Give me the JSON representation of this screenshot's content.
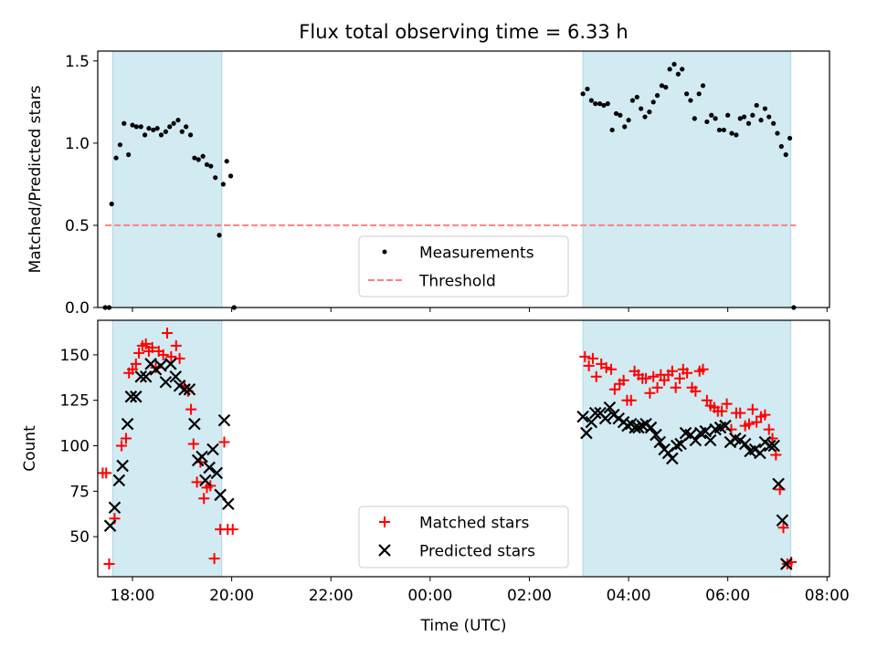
{
  "chart_data": [
    {
      "type": "scatter",
      "title": "Flux total observing time = 6.33 h",
      "xlabel": "",
      "ylabel": "Matched/Predicted stars",
      "xlim": [
        -6.7,
        8.05
      ],
      "ylim": [
        0,
        1.56
      ],
      "yticks": [
        0,
        0.5,
        1,
        1.5
      ],
      "ytick_labels": [
        "0.0",
        "0.5",
        "1.0",
        "1.5"
      ],
      "xticks": [
        -6,
        -4,
        -2,
        0,
        2,
        4,
        6,
        8
      ],
      "shaded_intervals": [
        [
          -6.4,
          -4.2
        ],
        [
          3.08,
          7.27
        ]
      ],
      "shade_color": "#add8e6",
      "legend_position": "lower center",
      "legend": [
        "Measurements",
        "Threshold"
      ],
      "threshold": {
        "name": "Threshold",
        "value": 0.5,
        "x": [
          -6.55,
          7.37
        ],
        "color": "#ff7f7f",
        "style": "dashed"
      },
      "series": [
        {
          "name": "Measurements",
          "color": "#000000",
          "marker": "dot",
          "points": [
            [
              -6.55,
              0.0
            ],
            [
              -6.47,
              0.0
            ],
            [
              -6.42,
              0.63
            ],
            [
              -6.33,
              0.91
            ],
            [
              -6.25,
              0.99
            ],
            [
              -6.17,
              1.12
            ],
            [
              -6.08,
              0.93
            ],
            [
              -6.0,
              1.11
            ],
            [
              -5.92,
              1.1
            ],
            [
              -5.83,
              1.1
            ],
            [
              -5.75,
              1.05
            ],
            [
              -5.67,
              1.09
            ],
            [
              -5.58,
              1.08
            ],
            [
              -5.5,
              1.09
            ],
            [
              -5.42,
              1.05
            ],
            [
              -5.33,
              1.07
            ],
            [
              -5.25,
              1.1
            ],
            [
              -5.17,
              1.12
            ],
            [
              -5.08,
              1.14
            ],
            [
              -5.0,
              1.07
            ],
            [
              -4.92,
              1.1
            ],
            [
              -4.83,
              1.05
            ],
            [
              -4.75,
              0.91
            ],
            [
              -4.67,
              0.9
            ],
            [
              -4.58,
              0.92
            ],
            [
              -4.5,
              0.87
            ],
            [
              -4.42,
              0.86
            ],
            [
              -4.33,
              0.79
            ],
            [
              -4.25,
              0.44
            ],
            [
              -4.17,
              0.75
            ],
            [
              -4.1,
              0.89
            ],
            [
              -4.02,
              0.8
            ],
            [
              -3.95,
              0.0
            ],
            [
              3.08,
              1.3
            ],
            [
              3.17,
              1.33
            ],
            [
              3.25,
              1.26
            ],
            [
              3.33,
              1.24
            ],
            [
              3.42,
              1.24
            ],
            [
              3.5,
              1.23
            ],
            [
              3.58,
              1.24
            ],
            [
              3.67,
              1.08
            ],
            [
              3.75,
              1.18
            ],
            [
              3.83,
              1.17
            ],
            [
              3.92,
              1.1
            ],
            [
              4.0,
              1.14
            ],
            [
              4.08,
              1.26
            ],
            [
              4.17,
              1.28
            ],
            [
              4.25,
              1.21
            ],
            [
              4.33,
              1.16
            ],
            [
              4.42,
              1.19
            ],
            [
              4.5,
              1.25
            ],
            [
              4.58,
              1.29
            ],
            [
              4.67,
              1.35
            ],
            [
              4.75,
              1.34
            ],
            [
              4.83,
              1.45
            ],
            [
              4.92,
              1.48
            ],
            [
              5.0,
              1.42
            ],
            [
              5.08,
              1.45
            ],
            [
              5.17,
              1.3
            ],
            [
              5.25,
              1.26
            ],
            [
              5.33,
              1.15
            ],
            [
              5.42,
              1.3
            ],
            [
              5.5,
              1.35
            ],
            [
              5.58,
              1.13
            ],
            [
              5.67,
              1.17
            ],
            [
              5.75,
              1.15
            ],
            [
              5.83,
              1.08
            ],
            [
              5.92,
              1.08
            ],
            [
              6.0,
              1.17
            ],
            [
              6.08,
              1.06
            ],
            [
              6.17,
              1.05
            ],
            [
              6.25,
              1.15
            ],
            [
              6.33,
              1.16
            ],
            [
              6.42,
              1.12
            ],
            [
              6.5,
              1.17
            ],
            [
              6.58,
              1.23
            ],
            [
              6.67,
              1.14
            ],
            [
              6.75,
              1.21
            ],
            [
              6.83,
              1.16
            ],
            [
              6.92,
              1.12
            ],
            [
              7.0,
              1.06
            ],
            [
              7.08,
              0.98
            ],
            [
              7.17,
              0.93
            ],
            [
              7.25,
              1.03
            ],
            [
              7.33,
              0.0
            ]
          ]
        }
      ]
    },
    {
      "type": "scatter",
      "title": "",
      "xlabel": "Time (UTC)",
      "ylabel": "Count",
      "xlim": [
        -6.7,
        8.05
      ],
      "ylim": [
        28,
        169
      ],
      "yticks": [
        50,
        75,
        100,
        125,
        150
      ],
      "ytick_labels": [
        "50",
        "75",
        "100",
        "125",
        "150"
      ],
      "xticks": [
        -6,
        -4,
        -2,
        0,
        2,
        4,
        6,
        8
      ],
      "xtick_labels": [
        "18:00",
        "20:00",
        "22:00",
        "00:00",
        "02:00",
        "04:00",
        "06:00",
        "08:00"
      ],
      "shaded_intervals": [
        [
          -6.4,
          -4.2
        ],
        [
          3.08,
          7.27
        ]
      ],
      "shade_color": "#add8e6",
      "legend_position": "lower center",
      "legend": [
        "Matched stars",
        "Predicted stars"
      ],
      "series": [
        {
          "name": "Matched stars",
          "color": "#ff0000",
          "marker": "plus",
          "points": [
            [
              -6.6,
              85
            ],
            [
              -6.53,
              85
            ],
            [
              -6.47,
              35
            ],
            [
              -6.36,
              60
            ],
            [
              -6.22,
              100
            ],
            [
              -6.13,
              104
            ],
            [
              -6.07,
              140
            ],
            [
              -6.0,
              142
            ],
            [
              -5.93,
              145
            ],
            [
              -5.87,
              151
            ],
            [
              -5.8,
              155
            ],
            [
              -5.73,
              156
            ],
            [
              -5.67,
              152
            ],
            [
              -5.6,
              154
            ],
            [
              -5.53,
              143
            ],
            [
              -5.47,
              152
            ],
            [
              -5.38,
              150
            ],
            [
              -5.3,
              162
            ],
            [
              -5.22,
              149
            ],
            [
              -5.12,
              155
            ],
            [
              -5.05,
              148
            ],
            [
              -4.95,
              133
            ],
            [
              -4.88,
              130
            ],
            [
              -4.82,
              120
            ],
            [
              -4.77,
              101
            ],
            [
              -4.7,
              80
            ],
            [
              -4.63,
              91
            ],
            [
              -4.56,
              71
            ],
            [
              -4.5,
              77
            ],
            [
              -4.43,
              78
            ],
            [
              -4.35,
              38
            ],
            [
              -4.23,
              54
            ],
            [
              -4.15,
              102
            ],
            [
              -4.08,
              54
            ],
            [
              -3.98,
              54
            ],
            [
              3.12,
              149
            ],
            [
              3.2,
              144
            ],
            [
              3.28,
              148
            ],
            [
              3.35,
              138
            ],
            [
              3.45,
              145
            ],
            [
              3.55,
              143
            ],
            [
              3.65,
              142
            ],
            [
              3.72,
              131
            ],
            [
              3.82,
              134
            ],
            [
              3.9,
              136
            ],
            [
              3.97,
              125
            ],
            [
              4.05,
              125
            ],
            [
              4.12,
              141
            ],
            [
              4.2,
              139
            ],
            [
              4.28,
              137
            ],
            [
              4.35,
              137
            ],
            [
              4.43,
              129
            ],
            [
              4.5,
              138
            ],
            [
              4.58,
              132
            ],
            [
              4.65,
              139
            ],
            [
              4.72,
              136
            ],
            [
              4.8,
              139
            ],
            [
              4.88,
              141
            ],
            [
              4.95,
              132
            ],
            [
              5.03,
              137
            ],
            [
              5.1,
              142
            ],
            [
              5.18,
              140
            ],
            [
              5.28,
              132
            ],
            [
              5.35,
              130
            ],
            [
              5.43,
              141
            ],
            [
              5.5,
              142
            ],
            [
              5.58,
              125
            ],
            [
              5.65,
              122
            ],
            [
              5.73,
              121
            ],
            [
              5.8,
              119
            ],
            [
              5.88,
              119
            ],
            [
              5.98,
              123
            ],
            [
              6.07,
              109
            ],
            [
              6.17,
              118
            ],
            [
              6.25,
              118
            ],
            [
              6.35,
              111
            ],
            [
              6.43,
              112
            ],
            [
              6.5,
              120
            ],
            [
              6.58,
              113
            ],
            [
              6.67,
              116
            ],
            [
              6.75,
              117
            ],
            [
              6.83,
              109
            ],
            [
              6.9,
              104
            ],
            [
              6.97,
              95
            ],
            [
              7.05,
              76
            ],
            [
              7.12,
              55
            ],
            [
              7.2,
              35
            ],
            [
              7.28,
              36
            ]
          ]
        },
        {
          "name": "Predicted stars",
          "color": "#000000",
          "marker": "x",
          "points": [
            [
              -6.45,
              56
            ],
            [
              -6.36,
              66
            ],
            [
              -6.27,
              81
            ],
            [
              -6.2,
              89
            ],
            [
              -6.1,
              112
            ],
            [
              -6.03,
              127
            ],
            [
              -5.93,
              127
            ],
            [
              -5.83,
              138
            ],
            [
              -5.73,
              138
            ],
            [
              -5.63,
              145
            ],
            [
              -5.53,
              142
            ],
            [
              -5.43,
              144
            ],
            [
              -5.33,
              135
            ],
            [
              -5.23,
              145
            ],
            [
              -5.13,
              138
            ],
            [
              -5.05,
              133
            ],
            [
              -4.95,
              131
            ],
            [
              -4.85,
              131
            ],
            [
              -4.75,
              112
            ],
            [
              -4.68,
              92
            ],
            [
              -4.6,
              94
            ],
            [
              -4.53,
              81
            ],
            [
              -4.45,
              88
            ],
            [
              -4.38,
              98
            ],
            [
              -4.3,
              85
            ],
            [
              -4.23,
              73
            ],
            [
              -4.15,
              114
            ],
            [
              -4.07,
              68
            ],
            [
              3.08,
              116
            ],
            [
              3.15,
              107
            ],
            [
              3.25,
              113
            ],
            [
              3.33,
              118
            ],
            [
              3.43,
              118
            ],
            [
              3.53,
              115
            ],
            [
              3.62,
              121
            ],
            [
              3.7,
              117
            ],
            [
              3.8,
              115
            ],
            [
              3.9,
              113
            ],
            [
              3.98,
              111
            ],
            [
              4.05,
              112
            ],
            [
              4.13,
              110
            ],
            [
              4.2,
              110
            ],
            [
              4.28,
              111
            ],
            [
              4.35,
              112
            ],
            [
              4.45,
              110
            ],
            [
              4.55,
              106
            ],
            [
              4.63,
              102
            ],
            [
              4.72,
              98
            ],
            [
              4.8,
              96
            ],
            [
              4.88,
              93
            ],
            [
              4.97,
              100
            ],
            [
              5.05,
              101
            ],
            [
              5.15,
              107
            ],
            [
              5.25,
              106
            ],
            [
              5.35,
              103
            ],
            [
              5.45,
              107
            ],
            [
              5.55,
              108
            ],
            [
              5.65,
              103
            ],
            [
              5.75,
              109
            ],
            [
              5.85,
              110
            ],
            [
              5.95,
              111
            ],
            [
              6.05,
              102
            ],
            [
              6.15,
              104
            ],
            [
              6.25,
              103
            ],
            [
              6.35,
              101
            ],
            [
              6.45,
              97
            ],
            [
              6.55,
              98
            ],
            [
              6.65,
              96
            ],
            [
              6.75,
              102
            ],
            [
              6.85,
              100
            ],
            [
              6.93,
              100
            ],
            [
              7.02,
              79
            ],
            [
              7.1,
              59
            ],
            [
              7.18,
              35
            ]
          ]
        }
      ]
    }
  ]
}
